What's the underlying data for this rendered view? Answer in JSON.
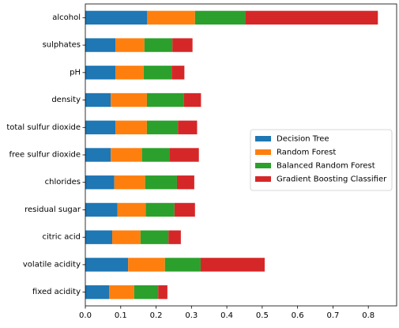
{
  "chart_data": {
    "type": "bar",
    "orientation": "horizontal",
    "stacked": true,
    "categories": [
      "fixed acidity",
      "volatile acidity",
      "citric acid",
      "residual sugar",
      "chlorides",
      "free sulfur dioxide",
      "total sulfur dioxide",
      "density",
      "pH",
      "sulphates",
      "alcohol"
    ],
    "series": [
      {
        "name": "Decision Tree",
        "color": "#1f77b4",
        "values": [
          0.067,
          0.121,
          0.076,
          0.091,
          0.082,
          0.072,
          0.085,
          0.072,
          0.085,
          0.085,
          0.175
        ]
      },
      {
        "name": "Random Forest",
        "color": "#ff7f0e",
        "values": [
          0.071,
          0.104,
          0.08,
          0.08,
          0.087,
          0.088,
          0.089,
          0.102,
          0.08,
          0.082,
          0.135
        ]
      },
      {
        "name": "Balanced Random Forest",
        "color": "#2ca02c",
        "values": [
          0.068,
          0.101,
          0.079,
          0.081,
          0.09,
          0.079,
          0.088,
          0.105,
          0.079,
          0.079,
          0.142
        ]
      },
      {
        "name": "Gradient Boosting Classifier",
        "color": "#d62728",
        "values": [
          0.026,
          0.181,
          0.035,
          0.058,
          0.049,
          0.082,
          0.054,
          0.048,
          0.036,
          0.057,
          0.375
        ]
      }
    ],
    "xlim": [
      0,
      0.88
    ],
    "xticks": [
      "0.0",
      "0.1",
      "0.2",
      "0.3",
      "0.4",
      "0.5",
      "0.6",
      "0.7",
      "0.8"
    ],
    "grid": false,
    "legend_position": "center-right"
  }
}
